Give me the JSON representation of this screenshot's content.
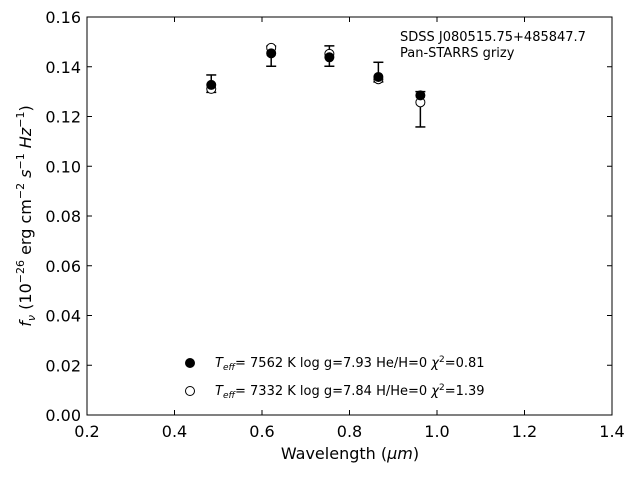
{
  "chart_data": {
    "type": "scatter",
    "annotation": {
      "object": "SDSS J080515.75+485847.7",
      "survey": "Pan-STARRS grizy"
    },
    "xlabel_text": "Wavelength (",
    "xlabel_unit": "μm",
    "xlabel_close": ")",
    "ylabel_var": "f",
    "ylabel_sub": "ν",
    "ylabel_rest": " (10",
    "ylabel_exp": "−26",
    "ylabel_unit": " erg cm",
    "ylabel_cm_exp": "−2",
    "ylabel_s": " s",
    "ylabel_s_exp": "−1",
    "ylabel_hz": " Hz",
    "ylabel_hz_exp": "−1",
    "ylabel_close": ")",
    "xlim": [
      0.2,
      1.4
    ],
    "ylim": [
      0.0,
      0.16
    ],
    "xticks": [
      "0.2",
      "0.4",
      "0.6",
      "0.8",
      "1.0",
      "1.2",
      "1.4"
    ],
    "yticks": [
      "0.00",
      "0.02",
      "0.04",
      "0.06",
      "0.08",
      "0.10",
      "0.12",
      "0.14",
      "0.16"
    ],
    "grid": false,
    "legend_position": "bottom-center",
    "observed": {
      "x": [
        0.484,
        0.621,
        0.754,
        0.866,
        0.962
      ],
      "y": [
        0.1327,
        0.1445,
        0.1443,
        0.1376,
        0.128
      ],
      "yerr_low": [
        0.1297,
        0.1402,
        0.1402,
        0.1339,
        0.1158
      ],
      "yerr_high": [
        0.1367,
        0.1483,
        0.1484,
        0.1418,
        0.13
      ]
    },
    "series": [
      {
        "style": "filled",
        "x": [
          0.484,
          0.621,
          0.754,
          0.866,
          0.962
        ],
        "y": [
          0.1327,
          0.1454,
          0.1438,
          0.1359,
          0.1285
        ],
        "legend": {
          "teff_label": "T",
          "teff_sub": "eff",
          "text": "=  7562 K  log g=7.93  He/H=0  ",
          "chi": "χ",
          "chi_exp": "2",
          "chi_val": "=0.81"
        }
      },
      {
        "style": "open",
        "x": [
          0.484,
          0.621,
          0.754,
          0.866,
          0.962
        ],
        "y": [
          0.1311,
          0.1476,
          0.1452,
          0.135,
          0.1257
        ],
        "legend": {
          "teff_label": "T",
          "teff_sub": "eff",
          "text": "=  7332 K  log g=7.84  H/He=0  ",
          "chi": "χ",
          "chi_exp": "2",
          "chi_val": "=1.39"
        }
      }
    ]
  }
}
